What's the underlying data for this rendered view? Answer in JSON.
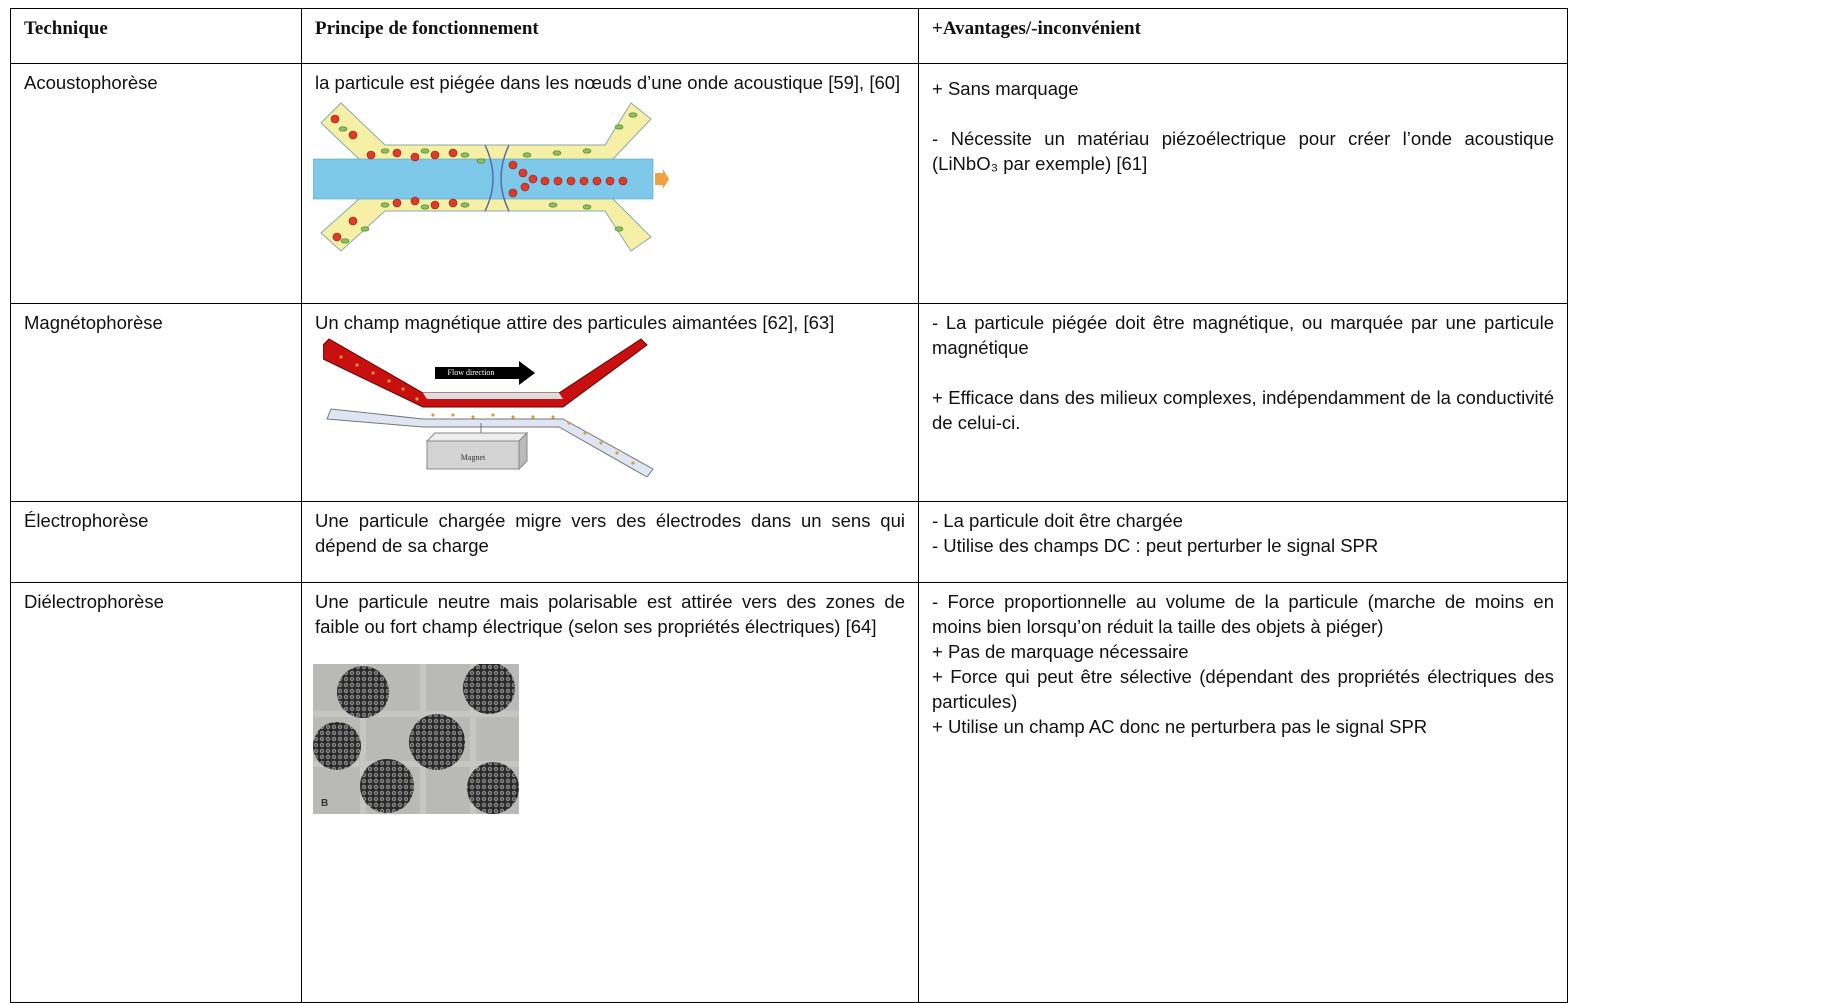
{
  "table": {
    "header": [
      "Technique",
      "Principe de fonctionnement",
      "+Avantages/-inconvénient"
    ],
    "rows": [
      {
        "technique": "Acoustophorèse",
        "principle": "la particule est piégée dans les nœuds d’une onde acoustique  [59], [60]",
        "advantages": [
          "+ Sans marquage",
          "- Nécessite un matériau piézoélectrique pour créer l’onde acoustique (LiNbO₃ par exemple) [61]"
        ]
      },
      {
        "technique": "Magnétophorèse",
        "principle": "Un champ magnétique attire des particules aimantées [62], [63]",
        "figure_labels": [
          "Flow direction",
          "Magnet"
        ],
        "advantages": [
          "- La particule piégée doit être magnétique, ou marquée par une particule magnétique",
          "+ Efficace dans des milieux complexes, indépendamment de la conductivité de celui-ci."
        ]
      },
      {
        "technique": "Électrophorèse",
        "principle": "Une particule chargée migre vers des électrodes dans un sens qui dépend de sa charge",
        "advantages": [
          "- La particule doit être chargée",
          "- Utilise des champs DC : peut perturber le signal SPR"
        ]
      },
      {
        "technique": "Diélectrophorèse",
        "principle": "Une particule neutre mais polarisable est attirée vers des zones de faible ou fort champ électrique (selon ses propriétés électriques) [64]",
        "figure_labels": [
          "B"
        ],
        "advantages": [
          "- Force proportionnelle au volume de la particule (marche de moins en moins bien lorsqu’on réduit la taille des objets à piéger)",
          "+ Pas de marquage nécessaire",
          "+ Force qui peut être sélective (dépendant des propriétés électriques des particules)",
          "+ Utilise un champ AC donc ne perturbera pas le signal SPR"
        ]
      }
    ]
  }
}
